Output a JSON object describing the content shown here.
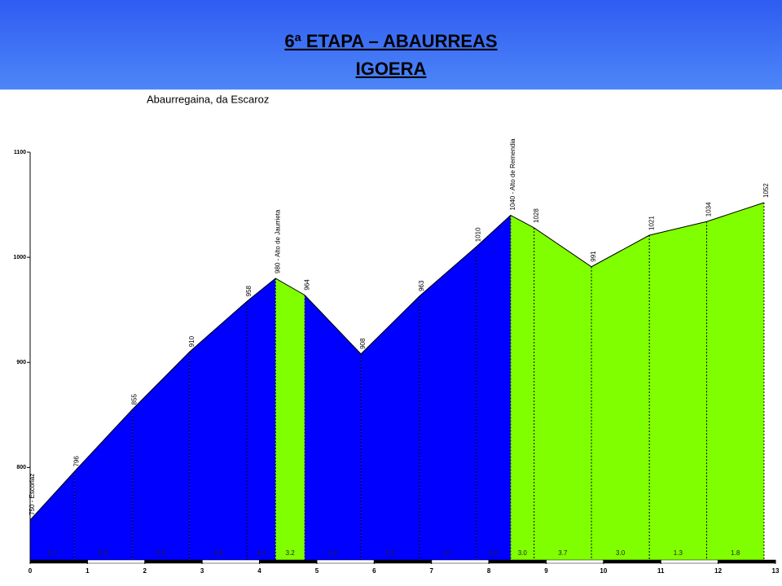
{
  "header": {
    "lines": [
      "6ª ETAPA – ABAURREAS",
      "IGOERA"
    ]
  },
  "chart_data": {
    "type": "elevation-profile",
    "title": "Abaurregaina, da Escaroz",
    "x": [
      0,
      0.77,
      1.78,
      2.78,
      3.78,
      4.28,
      4.79,
      5.77,
      6.79,
      7.78,
      8.38,
      8.79,
      9.79,
      10.8,
      11.8,
      12.8
    ],
    "values": [
      750,
      796,
      855,
      910,
      958,
      980,
      964,
      908,
      963,
      1010,
      1040,
      1028,
      991,
      1021,
      1034,
      1052
    ],
    "value_labels": [
      "750 - Escoriaz",
      "796",
      "855",
      "910",
      "958",
      "980 - Alto de Jaurrieta",
      "964",
      "908",
      "963",
      "1010",
      "1040 - Alto de Remendia",
      "1028",
      "991",
      "1021",
      "1034",
      "1052"
    ],
    "segment_labels": [
      "5.7",
      "5.8",
      "5.5",
      "4.8",
      "4.4",
      "3.2",
      "5.6",
      "5.5",
      "4.7",
      "5.0",
      "3.0",
      "3.7",
      "3.0",
      "1.3",
      "1.8"
    ],
    "segment_colors": [
      "#0000ff",
      "#0000ff",
      "#0000ff",
      "#0000ff",
      "#0000ff",
      "#80ff00",
      "#0000ff",
      "#0000ff",
      "#0000ff",
      "#0000ff",
      "#80ff00",
      "#80ff00",
      "#80ff00",
      "#80ff00",
      "#80ff00"
    ],
    "xlim": [
      0,
      13
    ],
    "xticks": [
      0,
      1,
      2,
      3,
      4,
      5,
      6,
      7,
      8,
      9,
      10,
      11,
      12,
      13
    ],
    "ylim": [
      712,
      1100
    ],
    "yticks": [
      800,
      900,
      1000,
      1100
    ]
  }
}
